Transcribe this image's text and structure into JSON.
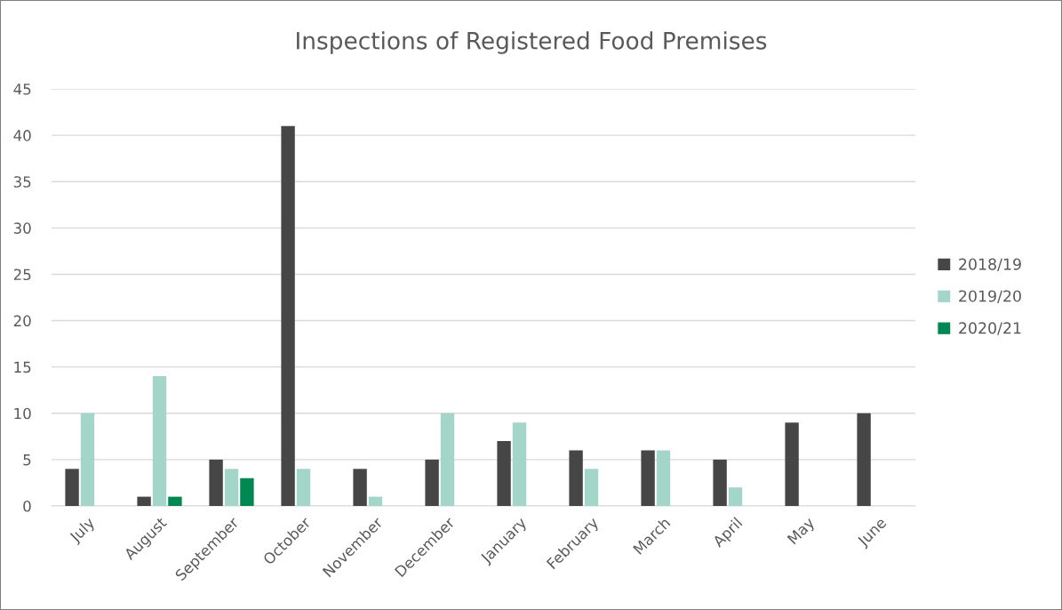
{
  "chart_data": {
    "type": "bar",
    "title": "Inspections of Registered Food Premises",
    "categories": [
      "July",
      "August",
      "September",
      "October",
      "November",
      "December",
      "January",
      "February",
      "March",
      "April",
      "May",
      "June"
    ],
    "series": [
      {
        "name": "2018/19",
        "color": "#464646",
        "values": [
          4,
          1,
          5,
          41,
          4,
          5,
          7,
          6,
          6,
          5,
          9,
          10
        ]
      },
      {
        "name": "2019/20",
        "color": "#a3d5c9",
        "values": [
          10,
          14,
          4,
          4,
          1,
          10,
          9,
          4,
          6,
          2,
          null,
          null
        ]
      },
      {
        "name": "2020/21",
        "color": "#008752",
        "values": [
          null,
          1,
          3,
          null,
          null,
          null,
          null,
          null,
          null,
          null,
          null,
          null
        ]
      }
    ],
    "ylim": [
      0,
      45
    ],
    "yticks": [
      0,
      5,
      10,
      15,
      20,
      25,
      30,
      35,
      40,
      45
    ],
    "grid": "y",
    "legend": "right"
  }
}
